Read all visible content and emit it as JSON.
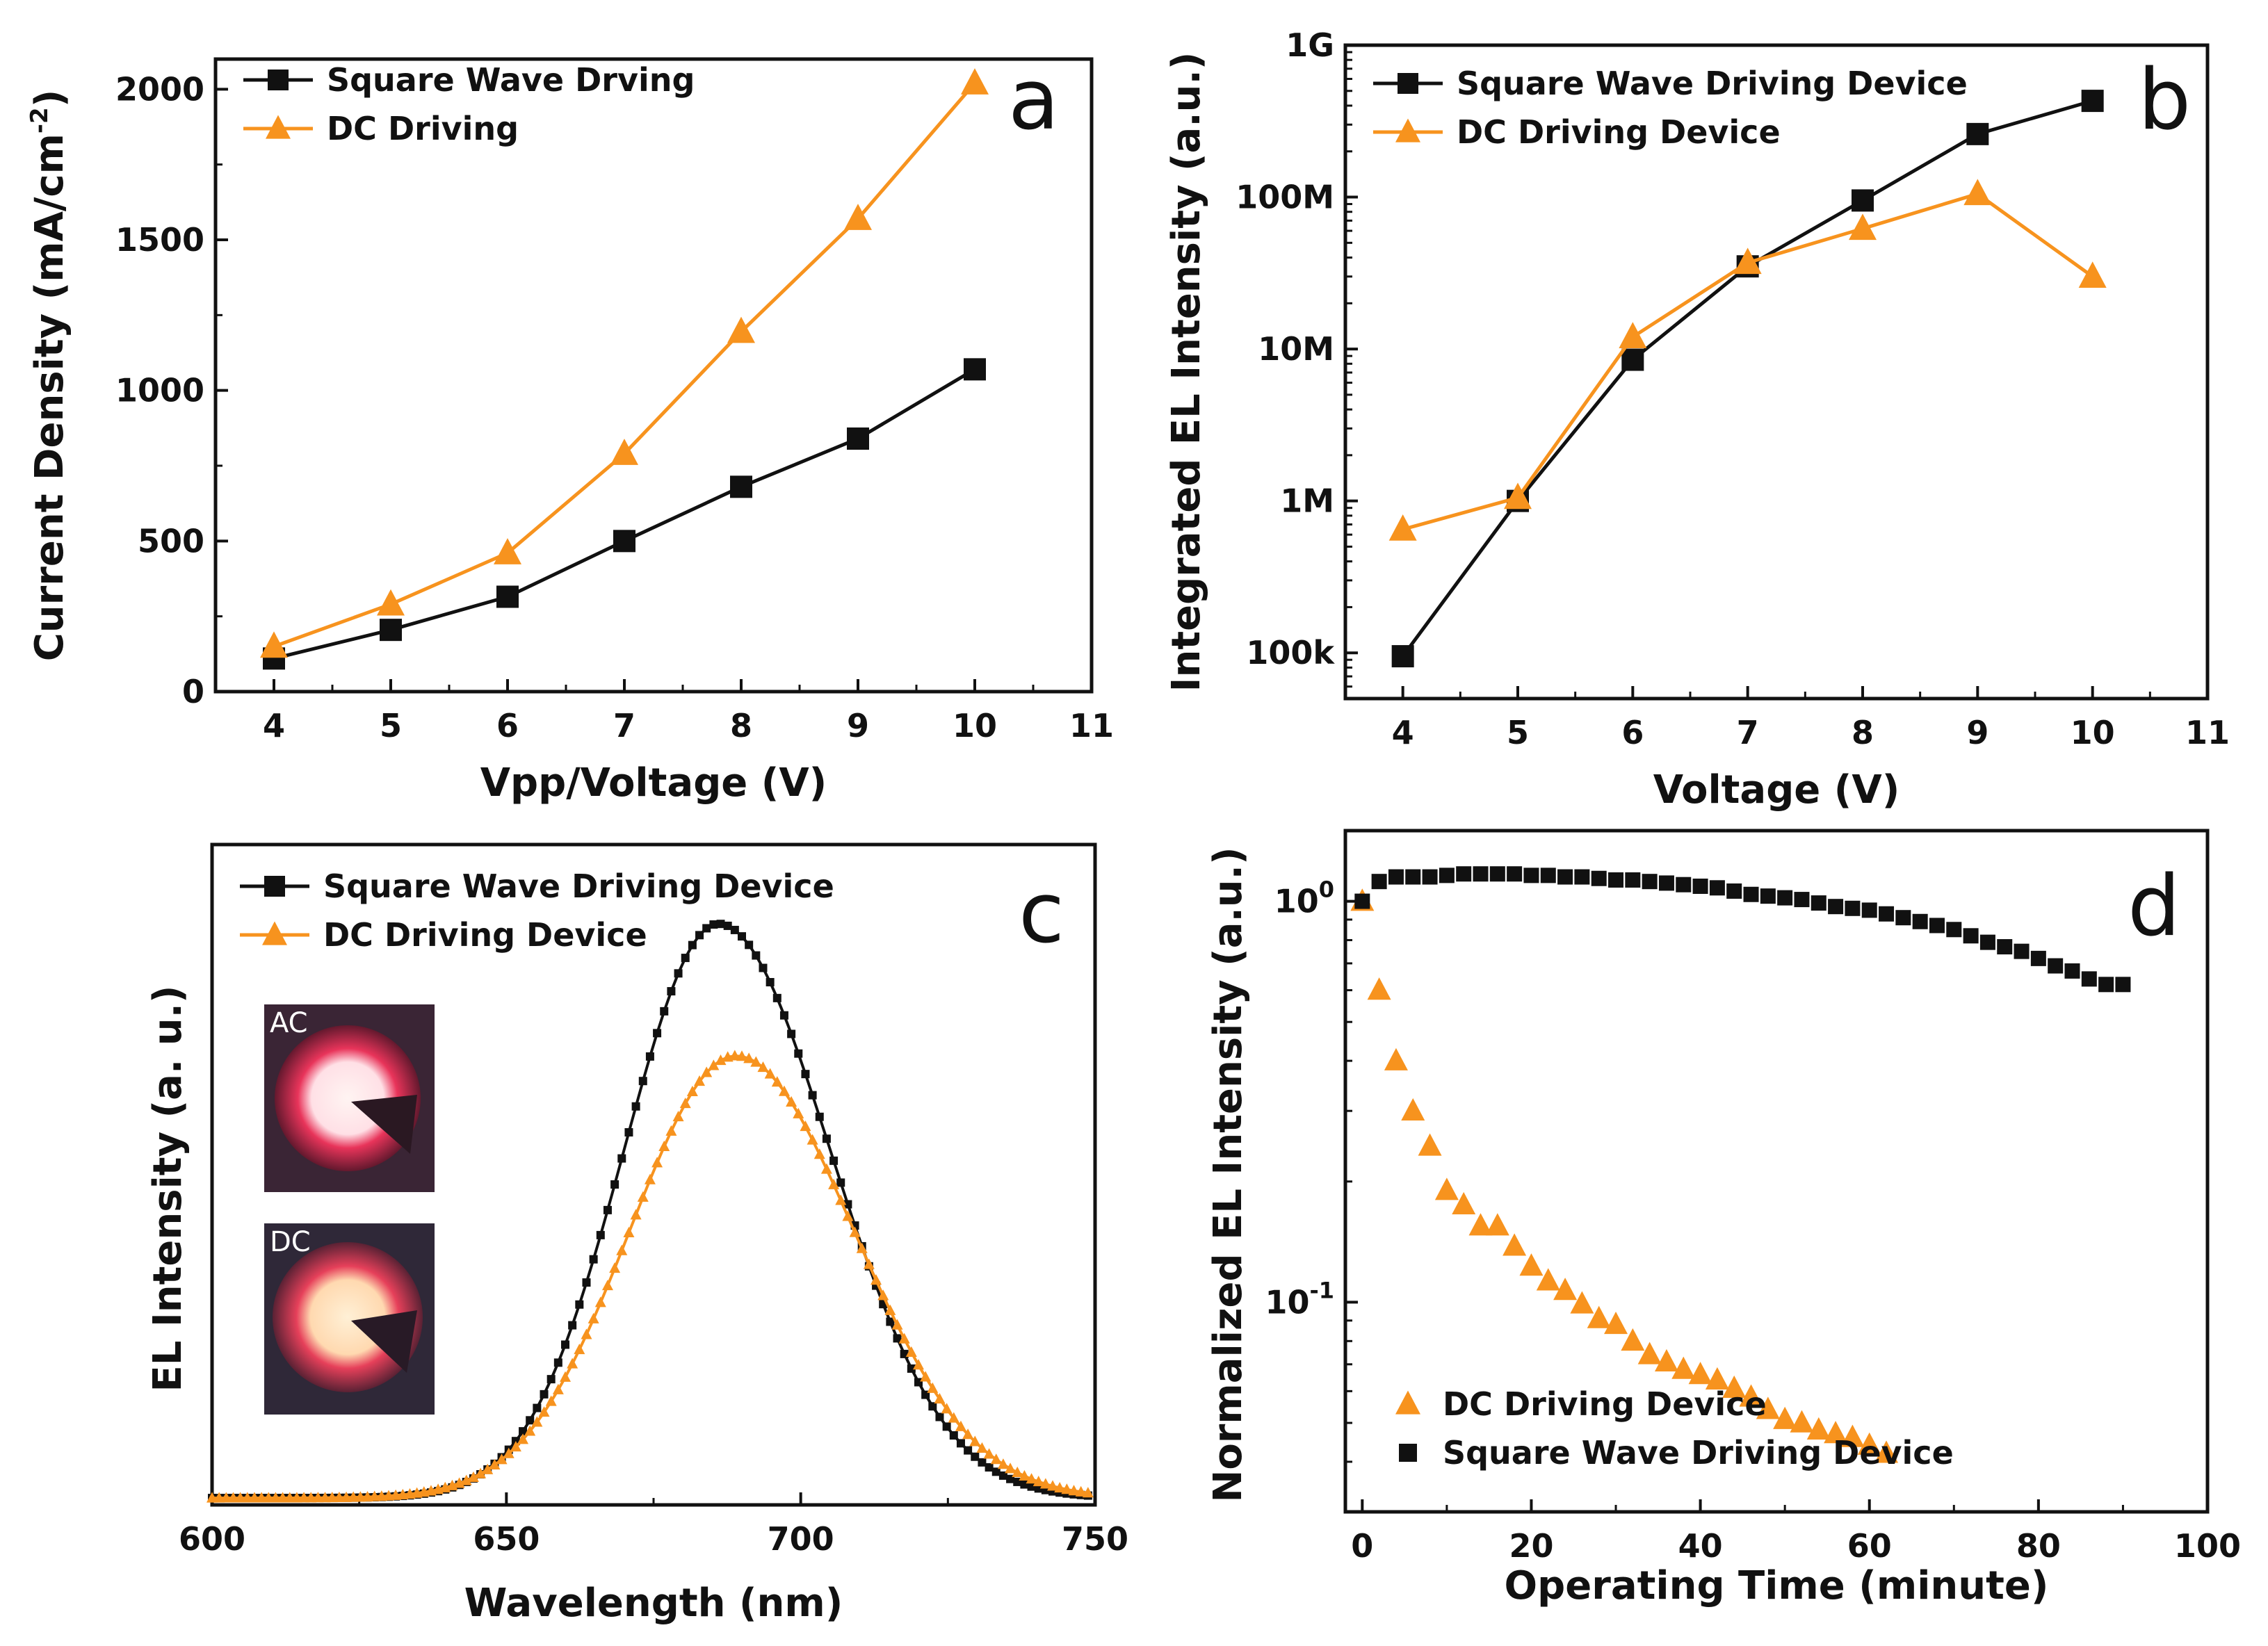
{
  "colors": {
    "square": "#111111",
    "dc": "#f7931e",
    "frame": "#111111"
  },
  "chart_data": [
    {
      "panel": "a",
      "type": "line",
      "title": "",
      "xlabel": "Vpp/Voltage (V)",
      "ylabel": "Current Density (mA/cm",
      "ylabel_sup": "-2",
      "ylabel_close": ")",
      "xlim": [
        3.5,
        11
      ],
      "ylim": [
        0,
        2100
      ],
      "xticks": [
        4,
        5,
        6,
        7,
        8,
        9,
        10,
        11
      ],
      "xtick_labels": [
        "4",
        "5",
        "6",
        "7",
        "8",
        "9",
        "10",
        "11"
      ],
      "yticks": [
        0,
        500,
        1000,
        1500,
        2000
      ],
      "ytick_labels": [
        "0",
        "500",
        "1000",
        "1500",
        "2000"
      ],
      "legend_position": "top-left",
      "series": [
        {
          "name": "Square Wave Drving",
          "marker": "square",
          "color": "#111111",
          "x": [
            4,
            5,
            6,
            7,
            8,
            9,
            10
          ],
          "y": [
            110,
            205,
            315,
            500,
            680,
            840,
            1070
          ]
        },
        {
          "name": "DC Driving",
          "marker": "triangle",
          "color": "#f7931e",
          "x": [
            4,
            5,
            6,
            7,
            8,
            9,
            10
          ],
          "y": [
            150,
            290,
            460,
            790,
            1195,
            1570,
            2020
          ]
        }
      ]
    },
    {
      "panel": "b",
      "type": "line",
      "yscale": "log",
      "xlabel": "Voltage (V)",
      "ylabel": "Integrated EL Intensity (a.u.)",
      "xlim": [
        3.5,
        11
      ],
      "ylim": [
        50000,
        1000000000
      ],
      "xticks": [
        4,
        5,
        6,
        7,
        8,
        9,
        10,
        11
      ],
      "xtick_labels": [
        "4",
        "5",
        "6",
        "7",
        "8",
        "9",
        "10",
        "11"
      ],
      "yticks": [
        100000,
        1000000,
        10000000,
        100000000,
        1000000000
      ],
      "ytick_labels": [
        "100k",
        "1M",
        "10M",
        "100M",
        "1G"
      ],
      "legend_position": "top-left",
      "series": [
        {
          "name": "Square Wave Driving Device",
          "marker": "square",
          "color": "#111111",
          "x": [
            4,
            5,
            6,
            7,
            8,
            9,
            10
          ],
          "y": [
            95000,
            1000000,
            8500000,
            35000000,
            95000000,
            260000000,
            430000000
          ]
        },
        {
          "name": "DC Driving Device",
          "marker": "triangle",
          "color": "#f7931e",
          "x": [
            4,
            5,
            6,
            7,
            8,
            9,
            10
          ],
          "y": [
            650000,
            1050000,
            12000000,
            37000000,
            62000000,
            105000000,
            30000000
          ]
        }
      ]
    },
    {
      "panel": "c",
      "type": "line",
      "xlabel": "Wavelength (nm)",
      "ylabel": "EL Intensity (a. u.)",
      "xlim": [
        600,
        750
      ],
      "ylim": [
        0,
        1.15
      ],
      "xticks": [
        600,
        650,
        700,
        750
      ],
      "xtick_labels": [
        "600",
        "650",
        "700",
        "750"
      ],
      "yticks": [],
      "legend_position": "top-left",
      "insets": [
        {
          "label": "AC"
        },
        {
          "label": "DC"
        }
      ],
      "series": [
        {
          "name": "Square Wave Driving Device",
          "marker": "square",
          "color": "#111111",
          "peak_nm": 686,
          "peak_value": 1.0,
          "width_left_nm": 16,
          "width_right_nm": 19
        },
        {
          "name": "DC Driving Device",
          "marker": "triangle",
          "color": "#f7931e",
          "peak_nm": 689,
          "peak_value": 0.77,
          "width_left_nm": 18,
          "width_right_nm": 20
        }
      ]
    },
    {
      "panel": "d",
      "type": "scatter",
      "yscale": "log",
      "xlabel": "Operating Time (minute)",
      "ylabel": "Normalized EL Intensity (a.u.)",
      "xlim": [
        -2,
        100
      ],
      "ylim": [
        0.03,
        1.5
      ],
      "xticks": [
        0,
        20,
        40,
        60,
        80,
        100
      ],
      "xtick_labels": [
        "0",
        "20",
        "40",
        "60",
        "80",
        "100"
      ],
      "yticks": [
        1,
        0.1
      ],
      "ytick_base": [
        "10",
        "10"
      ],
      "ytick_exp": [
        "0",
        "-1"
      ],
      "legend_position": "bottom-left",
      "series": [
        {
          "name": "DC Driving Device",
          "marker": "triangle",
          "color": "#f7931e",
          "x": [
            0,
            2,
            4,
            6,
            8,
            10,
            12,
            14,
            16,
            18,
            20,
            22,
            24,
            26,
            28,
            30,
            32,
            34,
            36,
            38,
            40,
            42,
            44,
            46,
            48,
            50,
            52,
            54,
            56,
            58,
            60,
            62
          ],
          "y": [
            1.0,
            0.6,
            0.4,
            0.3,
            0.245,
            0.19,
            0.175,
            0.155,
            0.155,
            0.138,
            0.123,
            0.113,
            0.107,
            0.099,
            0.091,
            0.088,
            0.08,
            0.074,
            0.071,
            0.068,
            0.066,
            0.064,
            0.061,
            0.058,
            0.054,
            0.051,
            0.05,
            0.048,
            0.047,
            0.046,
            0.044,
            0.042
          ]
        },
        {
          "name": "Square Wave Driving Device",
          "marker": "square",
          "color": "#111111",
          "x": [
            0,
            2,
            4,
            6,
            8,
            10,
            12,
            14,
            16,
            18,
            20,
            22,
            24,
            26,
            28,
            30,
            32,
            34,
            36,
            38,
            40,
            42,
            44,
            46,
            48,
            50,
            52,
            54,
            56,
            58,
            60,
            62,
            64,
            66,
            68,
            70,
            72,
            74,
            76,
            78,
            80,
            82,
            84,
            86,
            88,
            90
          ],
          "y": [
            1.0,
            1.12,
            1.15,
            1.15,
            1.15,
            1.16,
            1.17,
            1.17,
            1.17,
            1.17,
            1.16,
            1.16,
            1.15,
            1.15,
            1.14,
            1.13,
            1.13,
            1.12,
            1.11,
            1.1,
            1.09,
            1.08,
            1.06,
            1.04,
            1.03,
            1.02,
            1.01,
            0.99,
            0.97,
            0.96,
            0.95,
            0.93,
            0.91,
            0.89,
            0.87,
            0.85,
            0.82,
            0.79,
            0.77,
            0.75,
            0.72,
            0.69,
            0.67,
            0.64,
            0.62,
            0.62
          ]
        }
      ]
    }
  ]
}
